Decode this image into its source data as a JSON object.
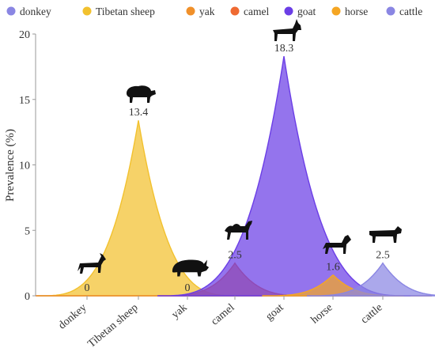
{
  "chart_data": {
    "type": "area",
    "categories": [
      "donkey",
      "Tibetan sheep",
      "yak",
      "camel",
      "goat",
      "horse",
      "cattle"
    ],
    "values": [
      0,
      13.4,
      0,
      2.5,
      18.3,
      1.6,
      2.5
    ],
    "value_labels": [
      "0",
      "13.4",
      "0",
      "2.5",
      "18.3",
      "1.6",
      "2.5"
    ],
    "series": [
      {
        "name": "donkey",
        "value": 0,
        "color": "#8a86e3",
        "icon": "donkey-icon"
      },
      {
        "name": "Tibetan sheep",
        "value": 13.4,
        "color": "#f2c12e",
        "icon": "sheep-icon"
      },
      {
        "name": "yak",
        "value": 0,
        "color": "#f0902a",
        "icon": "yak-icon"
      },
      {
        "name": "camel",
        "value": 2.5,
        "color": "#ef6a32",
        "icon": "camel-icon"
      },
      {
        "name": "goat",
        "value": 18.3,
        "color": "#6b3ee6",
        "icon": "goat-icon"
      },
      {
        "name": "horse",
        "value": 1.6,
        "color": "#f5a623",
        "icon": "horse-icon"
      },
      {
        "name": "cattle",
        "value": 2.5,
        "color": "#8a86e3",
        "icon": "cattle-icon"
      }
    ],
    "title": "",
    "xlabel": "",
    "ylabel": "Prevalence (%)",
    "ylim": [
      0,
      20
    ],
    "yticks": [
      "0",
      "5",
      "10",
      "15",
      "20"
    ],
    "grid": false,
    "legend": "top"
  }
}
